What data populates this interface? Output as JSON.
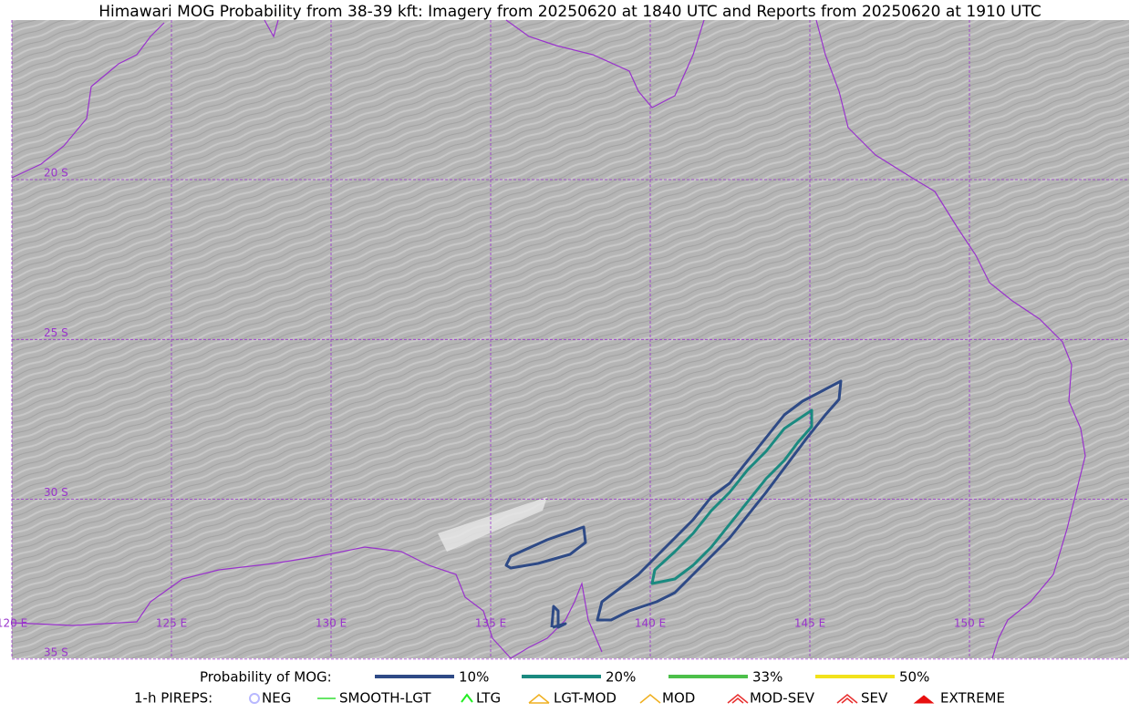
{
  "title": "Himawari MOG Probability from 38-39 kft: Imagery from 20250620 at 1840 UTC and Reports from 20250620 at 1910 UTC",
  "grid_labels": {
    "lat": [
      "20 S",
      "25 S",
      "30 S",
      "35 S"
    ],
    "lon": [
      "120 E",
      "125 E",
      "130 E",
      "135 E",
      "140 E",
      "145 E",
      "150 E"
    ]
  },
  "legend": {
    "probability": {
      "label": "Probability of MOG:",
      "items": [
        {
          "label": "10%",
          "color": "#2e4a86"
        },
        {
          "label": "20%",
          "color": "#1a8a80"
        },
        {
          "label": "33%",
          "color": "#4cc04a"
        },
        {
          "label": "50%",
          "color": "#f2e21a"
        }
      ]
    },
    "pireps": {
      "label": "1-h PIREPS:",
      "items": [
        {
          "label": "NEG",
          "color": "#b8b8ff"
        },
        {
          "label": "SMOOTH-LGT",
          "color": "#33dd33"
        },
        {
          "label": "LTG",
          "color": "#22ee22"
        },
        {
          "label": "LGT-MOD",
          "color": "#f0b020"
        },
        {
          "label": "MOD",
          "color": "#f0b020"
        },
        {
          "label": "MOD-SEV",
          "color": "#e83030"
        },
        {
          "label": "SEV",
          "color": "#e83030"
        },
        {
          "label": "EXTREME",
          "color": "#e81010"
        }
      ]
    }
  }
}
